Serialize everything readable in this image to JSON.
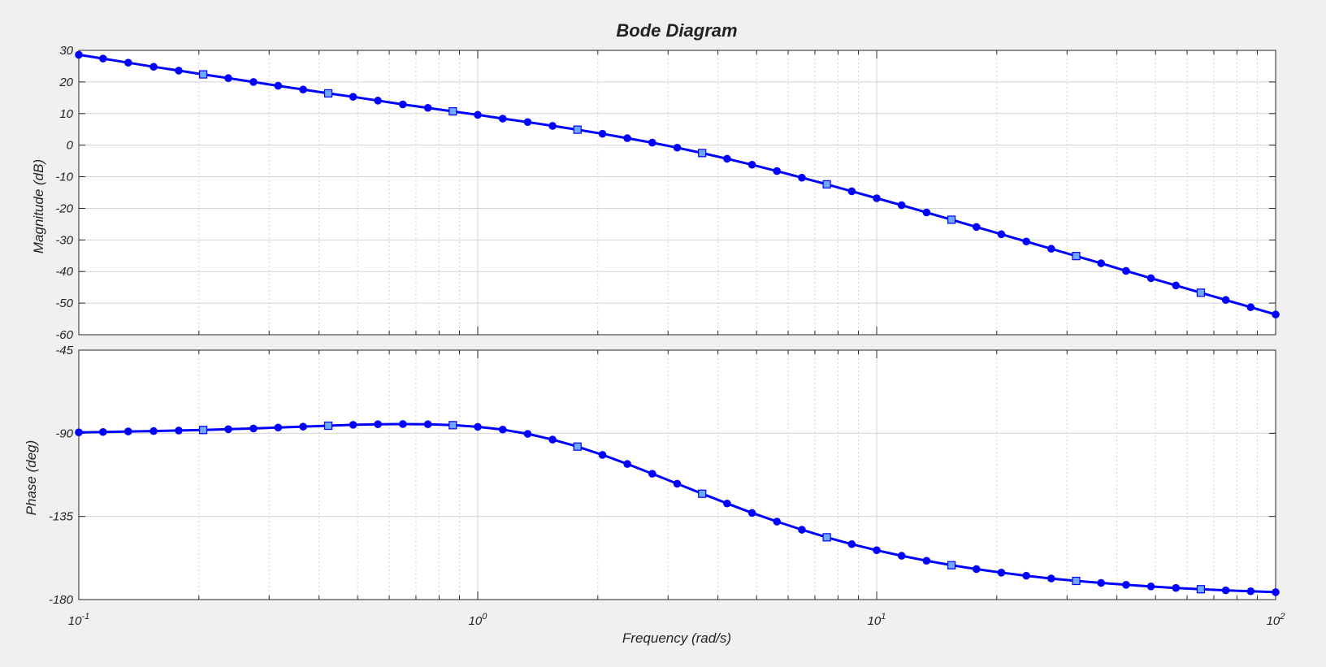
{
  "colors": {
    "figure_background": "#f0f0f0",
    "axes_background": "#ffffff",
    "line": "#0000ff",
    "marker_fill_highlight": "#6fa8ff",
    "grid": "#d4d4d4",
    "axis": "#262626"
  },
  "chart_data": {
    "type": "line",
    "title": "Bode Diagram",
    "xlabel": "Frequency  (rad/s)",
    "xscale": "log",
    "xlim": [
      0.1,
      100
    ],
    "x_ticks": [
      {
        "base": "10",
        "exp": "-1"
      },
      {
        "base": "10",
        "exp": "0"
      },
      {
        "base": "10",
        "exp": "1"
      },
      {
        "base": "10",
        "exp": "2"
      }
    ],
    "grid": true,
    "markers": "circles on every sample; light-blue squares every fifth sample",
    "x": [
      0.1,
      0.115,
      0.133,
      0.154,
      0.178,
      0.205,
      0.237,
      0.274,
      0.316,
      0.365,
      0.422,
      0.487,
      0.562,
      0.649,
      0.75,
      0.866,
      1.0,
      1.155,
      1.334,
      1.54,
      1.778,
      2.054,
      2.371,
      2.738,
      3.162,
      3.652,
      4.217,
      4.87,
      5.623,
      6.494,
      7.499,
      8.66,
      10.0,
      11.548,
      13.335,
      15.399,
      17.783,
      20.535,
      23.714,
      27.384,
      31.623,
      36.517,
      42.17,
      48.697,
      56.234,
      64.938,
      74.989,
      86.596,
      100.0
    ],
    "panels": [
      {
        "name": "magnitude",
        "ylabel": "Magnitude (dB)",
        "ylim": [
          -60,
          30
        ],
        "y_ticks": [
          "30",
          "20",
          "10",
          "0",
          "-10",
          "-20",
          "-30",
          "-40",
          "-50",
          "-60"
        ],
        "values": [
          28.6,
          27.4,
          26.1,
          24.8,
          23.6,
          22.4,
          21.2,
          20.0,
          18.8,
          17.6,
          16.4,
          15.3,
          14.1,
          12.9,
          11.8,
          10.7,
          9.6,
          8.4,
          7.3,
          6.1,
          4.9,
          3.6,
          2.2,
          0.8,
          -0.8,
          -2.5,
          -4.3,
          -6.2,
          -8.2,
          -10.3,
          -12.4,
          -14.6,
          -16.8,
          -19.0,
          -21.3,
          -23.6,
          -25.9,
          -28.2,
          -30.5,
          -32.8,
          -35.1,
          -37.4,
          -39.8,
          -42.1,
          -44.4,
          -46.7,
          -49.0,
          -51.3,
          -53.6
        ]
      },
      {
        "name": "phase",
        "ylabel": "Phase (deg)",
        "ylim": [
          -180,
          -45
        ],
        "y_ticks": [
          "-45",
          "-90",
          "-135",
          "-180"
        ],
        "values": [
          -89.5,
          -89.3,
          -89.0,
          -88.8,
          -88.5,
          -88.2,
          -87.8,
          -87.4,
          -86.9,
          -86.4,
          -85.9,
          -85.4,
          -85.1,
          -85.0,
          -85.1,
          -85.6,
          -86.5,
          -88.0,
          -90.3,
          -93.4,
          -97.2,
          -101.7,
          -106.6,
          -111.9,
          -117.3,
          -122.7,
          -128.0,
          -133.1,
          -137.8,
          -142.2,
          -146.3,
          -150.0,
          -153.3,
          -156.3,
          -159.0,
          -161.4,
          -163.5,
          -165.4,
          -167.1,
          -168.6,
          -169.9,
          -171.0,
          -172.0,
          -172.9,
          -173.7,
          -174.4,
          -175.0,
          -175.5,
          -176.0
        ]
      }
    ]
  }
}
